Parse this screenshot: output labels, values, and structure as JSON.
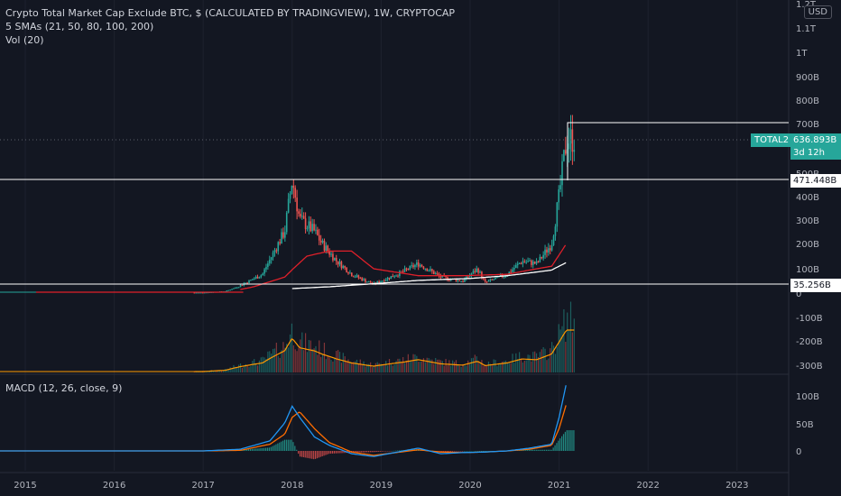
{
  "header": {
    "title": "Crypto Total Market Cap Exclude BTC, $ (CALCULATED BY TRADINGVIEW), 1W, CRYPTOCAP",
    "sma_label": "5 SMAs (21, 50, 80, 100, 200)",
    "vol_label": "Vol (20)",
    "currency": "USD"
  },
  "macd_panel": {
    "label": "MACD (12, 26, close, 9)",
    "y_ticks": [
      "100B",
      "50B",
      "0"
    ]
  },
  "price_tags": {
    "symbol": "TOTAL2",
    "last_value": "636.893B",
    "countdown": "3d 12h",
    "level_high": "471.448B",
    "level_low": "35.256B"
  },
  "colors": {
    "background": "#131722",
    "grid": "#1e222d",
    "candle_up": "#26a69a",
    "candle_down": "#ef5350",
    "sma_red": "#e0202a",
    "sma_white": "#ffffff",
    "macd_line": "#2196f3",
    "signal_line": "#ff6d00",
    "vol_ma": "#ff9800"
  },
  "chart_data": [
    {
      "type": "line",
      "title": "Crypto Total Market Cap Exclude BTC, $ (CALCULATED BY TRADINGVIEW), 1W, CRYPTOCAP",
      "scale": "log",
      "x_ticks": [
        "2015",
        "2016",
        "2017",
        "2018",
        "2019",
        "2020",
        "2021",
        "2022",
        "2023"
      ],
      "y_ticks": [
        "1.2T",
        "1.1T",
        "1T",
        "900B",
        "800B",
        "700B",
        "600B",
        "500B",
        "400B",
        "300B",
        "200B",
        "100B",
        "0",
        "-100B",
        "-200B",
        "-300B"
      ],
      "series": [
        {
          "name": "TOTAL2",
          "x": [
            "2015-01",
            "2016-01",
            "2017-01",
            "2017-04",
            "2017-06",
            "2017-09",
            "2017-12",
            "2018-01",
            "2018-02",
            "2018-04",
            "2018-05",
            "2018-07",
            "2018-09",
            "2018-11",
            "2018-12",
            "2019-04",
            "2019-06",
            "2019-09",
            "2019-12",
            "2020-02",
            "2020-03",
            "2020-06",
            "2020-08",
            "2020-10",
            "2020-12",
            "2021-01",
            "2021-02"
          ],
          "values": [
            1,
            1.5,
            3,
            10,
            40,
            80,
            250,
            470,
            300,
            250,
            200,
            130,
            80,
            55,
            45,
            90,
            120,
            70,
            55,
            100,
            50,
            80,
            130,
            120,
            200,
            400,
            636.9
          ]
        },
        {
          "x": [
            "2017-06",
            "2017-12",
            "2018-03",
            "2018-06",
            "2018-09",
            "2018-12",
            "2019-06",
            "2019-12",
            "2020-06",
            "2020-12",
            "2021-02"
          ],
          "values": [
            20,
            70,
            150,
            170,
            170,
            100,
            75,
            75,
            80,
            110,
            200
          ]
        },
        {
          "x": [
            "2018-01",
            "2018-06",
            "2019-01",
            "2019-06",
            "2020-01",
            "2020-06",
            "2020-12",
            "2021-02"
          ],
          "values": [
            25,
            35,
            48,
            58,
            65,
            75,
            95,
            125
          ]
        }
      ]
    },
    {
      "type": "line",
      "title": "MACD (12, 26, close, 9)",
      "x_ticks": [
        "2015",
        "2016",
        "2017",
        "2018",
        "2019",
        "2020",
        "2021",
        "2022",
        "2023"
      ],
      "y_ticks": [
        "100B",
        "50B",
        "0"
      ],
      "series": [
        {
          "x": [
            "2015-01",
            "2017-01",
            "2017-06",
            "2017-10",
            "2017-12",
            "2018-01",
            "2018-02",
            "2018-04",
            "2018-06",
            "2018-09",
            "2018-12",
            "2019-06",
            "2019-09",
            "2019-12",
            "2020-03",
            "2020-06",
            "2020-09",
            "2020-12",
            "2021-01",
            "2021-02"
          ],
          "values": [
            0,
            0,
            3,
            18,
            50,
            80,
            60,
            25,
            10,
            -5,
            -10,
            5,
            -5,
            -3,
            -2,
            0,
            5,
            12,
            60,
            122
          ]
        },
        {
          "x": [
            "2015-01",
            "2017-01",
            "2017-06",
            "2017-10",
            "2017-12",
            "2018-01",
            "2018-02",
            "2018-04",
            "2018-06",
            "2018-09",
            "2018-12",
            "2019-06",
            "2019-09",
            "2019-12",
            "2020-03",
            "2020-06",
            "2020-09",
            "2020-12",
            "2021-01",
            "2021-02"
          ],
          "values": [
            0,
            0,
            1,
            12,
            30,
            60,
            70,
            40,
            15,
            -2,
            -8,
            2,
            -2,
            -3,
            -2,
            0,
            3,
            10,
            40,
            85
          ]
        }
      ]
    }
  ]
}
